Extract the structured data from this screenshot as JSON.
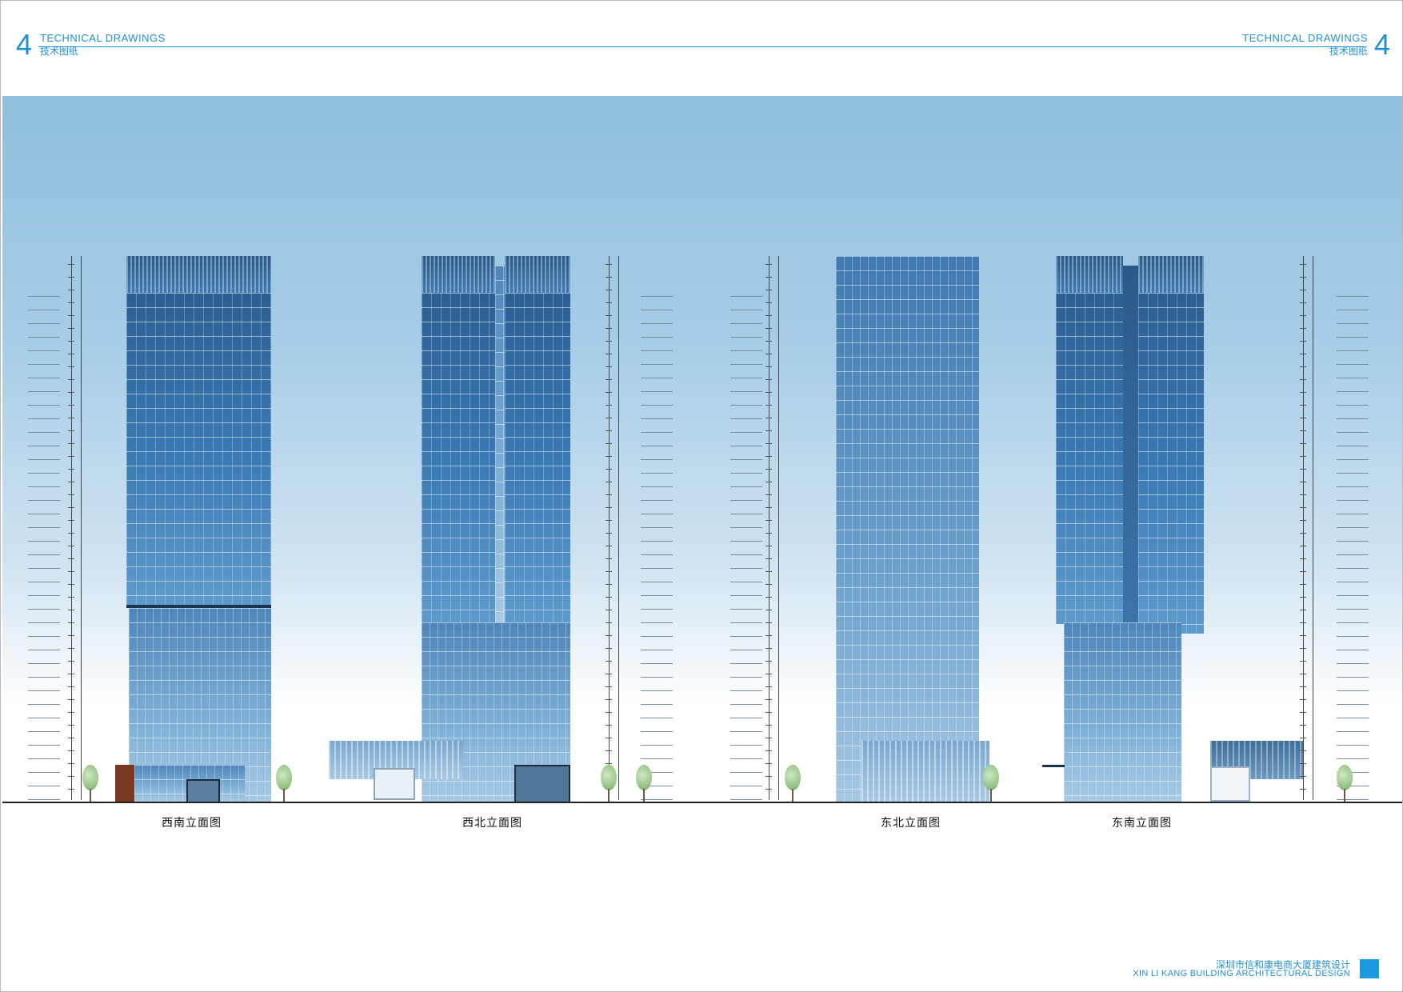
{
  "header": {
    "number": "4",
    "title_en": "TECHNICAL DRAWINGS",
    "title_cn": "技术图纸"
  },
  "elevations": [
    {
      "caption": "西南立面图"
    },
    {
      "caption": "西北立面图"
    },
    {
      "caption": "东北立面图"
    },
    {
      "caption": "东南立面图"
    }
  ],
  "footer": {
    "title_cn": "深圳市信和康电商大厦建筑设计",
    "title_en": "XIN LI KANG BUILDING ARCHITECTURAL DESIGN"
  },
  "colors": {
    "accent": "#1f8fd6",
    "sky_top": "#8fbfde",
    "glass": "#3a78b3"
  }
}
